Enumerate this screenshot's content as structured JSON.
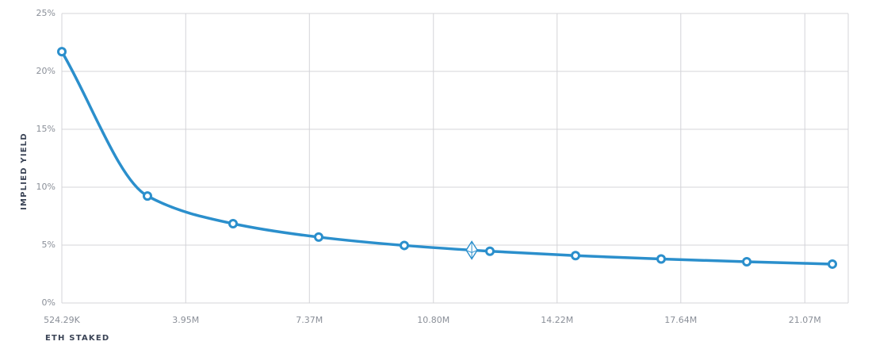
{
  "chart_data": {
    "type": "line",
    "ylabel": "IMPLIED YIELD",
    "xlabel": "ETH STAKED",
    "x": [
      524288,
      2891788,
      5259288,
      7626788,
      9994288,
      12361788,
      14729288,
      17096788,
      19464288,
      21831788
    ],
    "series": [
      {
        "color": "#2b8fcc",
        "values": [
          21.7,
          9.24,
          6.85,
          5.69,
          4.97,
          4.47,
          4.09,
          3.8,
          3.56,
          3.36
        ]
      }
    ],
    "current": {
      "x": 11860000,
      "y": 4.56
    },
    "xlim": [
      524288,
      22270000
    ],
    "ylim": [
      0,
      25
    ],
    "xticks": [
      {
        "value": 524288,
        "label": "524.29K"
      },
      {
        "value": 3950000,
        "label": "3.95M"
      },
      {
        "value": 7370000,
        "label": "7.37M"
      },
      {
        "value": 10800000,
        "label": "10.80M"
      },
      {
        "value": 14220000,
        "label": "14.22M"
      },
      {
        "value": 17640000,
        "label": "17.64M"
      },
      {
        "value": 21070000,
        "label": "21.07M"
      }
    ],
    "yticks": [
      {
        "value": 0,
        "label": "0%"
      },
      {
        "value": 5,
        "label": "5%"
      },
      {
        "value": 10,
        "label": "10%"
      },
      {
        "value": 15,
        "label": "15%"
      },
      {
        "value": 20,
        "label": "20%"
      },
      {
        "value": 25,
        "label": "25%"
      }
    ],
    "grid": true
  }
}
